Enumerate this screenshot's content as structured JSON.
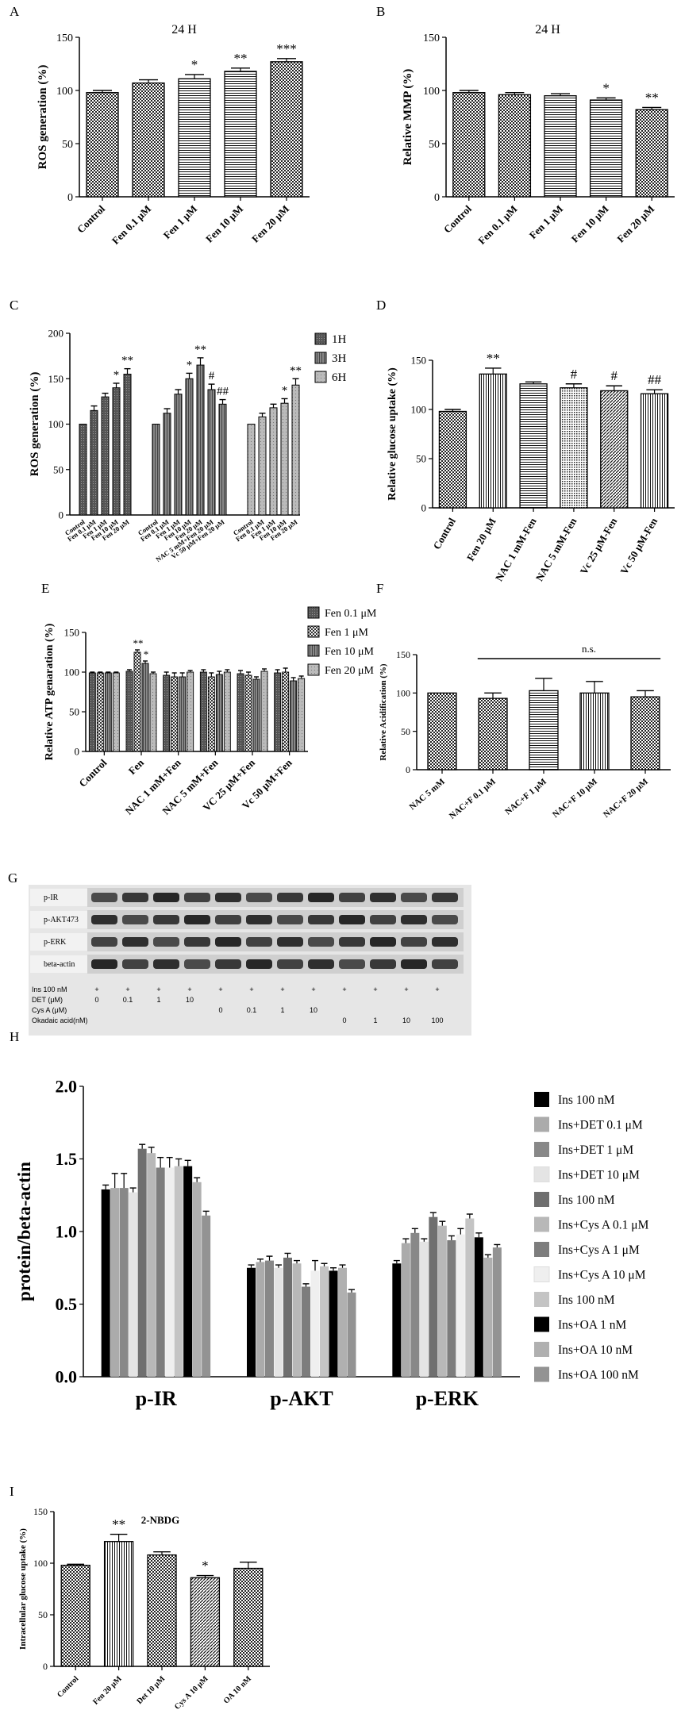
{
  "colors": {
    "ink": "#000000",
    "blot_band": "#1d1d1d",
    "blot_bg": "#dcdcdc"
  },
  "panels": [
    {
      "id": "A",
      "letter": "A",
      "title": "24 H",
      "type": "bar",
      "ylabel": "ROS generation (%)",
      "ylim": [
        0,
        150
      ],
      "yticks": [
        0,
        50,
        100,
        150
      ],
      "categories": [
        "Control",
        "Fen 0.1 μM",
        "Fen 1 μM",
        "Fen 10 μM",
        "Fen 20 μM"
      ],
      "values": [
        98,
        107,
        111,
        118,
        127
      ],
      "errors": [
        2,
        3,
        4,
        3,
        3
      ],
      "annotations": [
        "",
        "",
        "*",
        "**",
        "***"
      ],
      "patterns": [
        "check",
        "check",
        "hline",
        "hline",
        "check"
      ]
    },
    {
      "id": "B",
      "letter": "B",
      "title": "24 H",
      "type": "bar",
      "ylabel": "Relative MMP (%)",
      "ylim": [
        0,
        150
      ],
      "yticks": [
        0,
        50,
        100,
        150
      ],
      "categories": [
        "Control",
        "Fen 0.1 μM",
        "Fen 1 μM",
        "Fen 10 μM",
        "Fen 20 μM"
      ],
      "values": [
        98,
        96,
        95,
        91,
        82
      ],
      "errors": [
        2,
        2,
        2,
        2,
        2
      ],
      "annotations": [
        "",
        "",
        "",
        "*",
        "**"
      ],
      "patterns": [
        "check",
        "check",
        "hline",
        "hline",
        "check"
      ]
    },
    {
      "id": "C",
      "letter": "C",
      "title": "",
      "type": "bar",
      "ylabel": "ROS generation (%)",
      "ylim": [
        0,
        200
      ],
      "yticks": [
        0,
        50,
        100,
        150,
        200
      ],
      "categories": [
        "Control",
        "Fen 0.1 μM",
        "Fen 1 μM",
        "Fen 10 μM",
        "Fen 20 μM",
        "Control",
        "Fen 0.1 μM",
        "Fen 1 μM",
        "Fen 10 μM",
        "Fen 20 μM",
        "NAC 5 mM+Fen 20 μM",
        "Vc 50 μM+Fen 20 μM",
        "Control",
        "Fen 0.1 μM",
        "Fen 1 μM",
        "Fen 10 μM",
        "Fen 20 μM"
      ],
      "values": [
        100,
        115,
        130,
        140,
        155,
        100,
        112,
        133,
        150,
        165,
        138,
        122,
        100,
        108,
        118,
        123,
        143
      ],
      "errors": [
        0,
        5,
        4,
        5,
        6,
        0,
        5,
        5,
        6,
        8,
        6,
        5,
        0,
        4,
        4,
        5,
        7
      ],
      "annotations": [
        "",
        "",
        "",
        "*",
        "**",
        "",
        "",
        "",
        "*",
        "**",
        "#",
        "##",
        "",
        "",
        "",
        "*",
        "**"
      ],
      "legend": [
        "1H",
        "3H",
        "6H"
      ]
    },
    {
      "id": "D",
      "letter": "D",
      "title": "",
      "type": "bar",
      "ylabel": "Relative glucose uptake (%)",
      "ylim": [
        0,
        150
      ],
      "yticks": [
        0,
        50,
        100,
        150
      ],
      "categories": [
        "Control",
        "Fen 20 μM",
        "NAC 1 mM-Fen",
        "NAC 5 mM-Fen",
        "Vc 25 μM-Fen",
        "Vc 50 μM-Fen"
      ],
      "values": [
        98,
        136,
        126,
        122,
        119,
        116
      ],
      "errors": [
        2,
        6,
        2,
        4,
        5,
        4
      ],
      "annotations": [
        "",
        "**",
        "",
        "#",
        "#",
        "##"
      ],
      "patterns": [
        "check",
        "vline",
        "hline",
        "dots",
        "diag",
        "vline"
      ]
    },
    {
      "id": "E",
      "letter": "E",
      "title": "",
      "type": "bar",
      "ylabel": "Relative ATP genaration (%)",
      "ylim": [
        0,
        150
      ],
      "yticks": [
        0,
        50,
        100,
        150
      ],
      "group_labels": [
        "Control",
        "Fen",
        "NAC 1 mM+Fen",
        "NAC 5 mM+Fen",
        "VC 25 μM+Fen",
        "Vc 50 μM+Fen"
      ],
      "values": [
        [
          99,
          99,
          99,
          99
        ],
        [
          101,
          125,
          111,
          98
        ],
        [
          96,
          94,
          94,
          100
        ],
        [
          100,
          94,
          97,
          100
        ],
        [
          98,
          96,
          91,
          101
        ],
        [
          99,
          100,
          89,
          92
        ]
      ],
      "errors": [
        [
          1,
          1,
          1,
          1
        ],
        [
          2,
          3,
          3,
          2
        ],
        [
          4,
          5,
          5,
          2
        ],
        [
          3,
          5,
          4,
          3
        ],
        [
          4,
          4,
          3,
          3
        ],
        [
          4,
          5,
          4,
          3
        ]
      ],
      "annotations": [
        [
          "",
          "",
          "",
          ""
        ],
        [
          "",
          "**",
          "*",
          ""
        ],
        [
          "",
          "",
          "",
          ""
        ],
        [
          "",
          "",
          "",
          ""
        ],
        [
          "",
          "",
          "",
          ""
        ],
        [
          "",
          "",
          "",
          ""
        ]
      ],
      "legend": [
        "Fen 0.1 μM",
        "Fen 1 μM",
        "Fen 10 μM",
        "Fen 20 μM"
      ]
    },
    {
      "id": "F",
      "letter": "F",
      "title": "",
      "type": "bar",
      "ylabel": "Relative Acidification (%)",
      "ylim": [
        0,
        150
      ],
      "yticks": [
        0,
        50,
        100,
        150
      ],
      "categories": [
        "NAC 5 mM",
        "NAC+F 0.1 μM",
        "NAC+F 1 μM",
        "NAC+F 10 μM",
        "NAC+F 20 μM"
      ],
      "values": [
        100,
        93,
        103,
        100,
        95
      ],
      "errors": [
        0,
        7,
        16,
        15,
        8
      ],
      "annotations": [
        "",
        "",
        "",
        "",
        ""
      ],
      "bracket_label": "n.s.",
      "patterns": [
        "check",
        "check",
        "hline",
        "vline",
        "check"
      ]
    },
    {
      "id": "G",
      "letter": "G",
      "type": "blot",
      "bands": [
        "p-IR",
        "p-AKT473",
        "p-ERK",
        "beta-actin"
      ],
      "rows": [
        {
          "label": "Ins 100 nM",
          "cells": [
            "+",
            "+",
            "+",
            "+",
            "+",
            "+",
            "+",
            "+",
            "+",
            "+",
            "+",
            "+"
          ]
        },
        {
          "label": "DET (μM)",
          "cells": [
            "0",
            "0.1",
            "1",
            "10",
            "",
            "",
            "",
            "",
            "",
            "",
            "",
            ""
          ]
        },
        {
          "label": "Cys A (μM)",
          "cells": [
            "",
            "",
            "",
            "",
            "0",
            "0.1",
            "1",
            "10",
            "",
            "",
            "",
            ""
          ]
        },
        {
          "label": "Okadaic acid(nM)",
          "cells": [
            "",
            "",
            "",
            "",
            "",
            "",
            "",
            "",
            "0",
            "1",
            "10",
            "100"
          ]
        }
      ]
    },
    {
      "id": "H",
      "letter": "H",
      "title": "",
      "type": "bar",
      "ylabel": "protein/beta-actin",
      "ylim": [
        0,
        2.0
      ],
      "yticks": [
        0.0,
        0.5,
        1.0,
        1.5,
        2.0
      ],
      "groups": [
        "p-IR",
        "p-AKT",
        "p-ERK"
      ],
      "series": [
        {
          "name": "Ins 100 nM",
          "color": "#000000",
          "values": [
            1.29,
            0.75,
            0.78
          ],
          "errors": [
            0.03,
            0.02,
            0.02
          ]
        },
        {
          "name": "Ins+DET 0.1 μM",
          "color": "#ababab",
          "values": [
            1.3,
            0.79,
            0.92
          ],
          "errors": [
            0.1,
            0.02,
            0.03
          ]
        },
        {
          "name": "Ins+DET 1 μM",
          "color": "#888888",
          "values": [
            1.3,
            0.8,
            0.99
          ],
          "errors": [
            0.1,
            0.03,
            0.03
          ]
        },
        {
          "name": "Ins+DET 10 μM",
          "color": "#e4e4e4",
          "values": [
            1.27,
            0.75,
            0.93
          ],
          "errors": [
            0.03,
            0.02,
            0.02
          ]
        },
        {
          "name": "Ins 100 nM",
          "color": "#6f6f6f",
          "values": [
            1.57,
            0.82,
            1.1
          ],
          "errors": [
            0.03,
            0.03,
            0.03
          ]
        },
        {
          "name": "Ins+Cys A 0.1 μM",
          "color": "#b8b8b8",
          "values": [
            1.54,
            0.78,
            1.04
          ],
          "errors": [
            0.04,
            0.02,
            0.03
          ]
        },
        {
          "name": "Ins+Cys A 1 μM",
          "color": "#7d7d7d",
          "values": [
            1.44,
            0.62,
            0.94
          ],
          "errors": [
            0.07,
            0.02,
            0.03
          ]
        },
        {
          "name": "Ins+Cys A 10 μM",
          "color": "#efefef",
          "values": [
            1.44,
            0.73,
            0.98
          ],
          "errors": [
            0.07,
            0.07,
            0.04
          ]
        },
        {
          "name": "Ins 100 nM",
          "color": "#c4c4c4",
          "values": [
            1.45,
            0.76,
            1.09
          ],
          "errors": [
            0.05,
            0.02,
            0.03
          ]
        },
        {
          "name": "Ins+OA 1 nM",
          "color": "#000000",
          "values": [
            1.45,
            0.73,
            0.96
          ],
          "errors": [
            0.04,
            0.02,
            0.03
          ]
        },
        {
          "name": "Ins+OA 10 nM",
          "color": "#b0b0b0",
          "values": [
            1.34,
            0.75,
            0.82
          ],
          "errors": [
            0.03,
            0.02,
            0.02
          ]
        },
        {
          "name": "Ins+OA 100 nM",
          "color": "#939393",
          "values": [
            1.11,
            0.58,
            0.89
          ],
          "errors": [
            0.03,
            0.02,
            0.02
          ]
        }
      ]
    },
    {
      "id": "I",
      "letter": "I",
      "title": "2-NBDG",
      "type": "bar",
      "ylabel": "Intracellular glucose uptake (%)",
      "ylim": [
        0,
        150
      ],
      "yticks": [
        0,
        50,
        100,
        150
      ],
      "categories": [
        "Control",
        "Fen 20 μM",
        "Det 10 μM",
        "Cys A 10 μM",
        "OA 10 nM"
      ],
      "values": [
        98,
        121,
        108,
        86,
        95
      ],
      "errors": [
        1,
        7,
        3,
        2,
        6
      ],
      "annotations": [
        "",
        "**",
        "",
        "*",
        ""
      ],
      "patterns": [
        "check",
        "vline",
        "check",
        "diag",
        "check"
      ]
    }
  ]
}
